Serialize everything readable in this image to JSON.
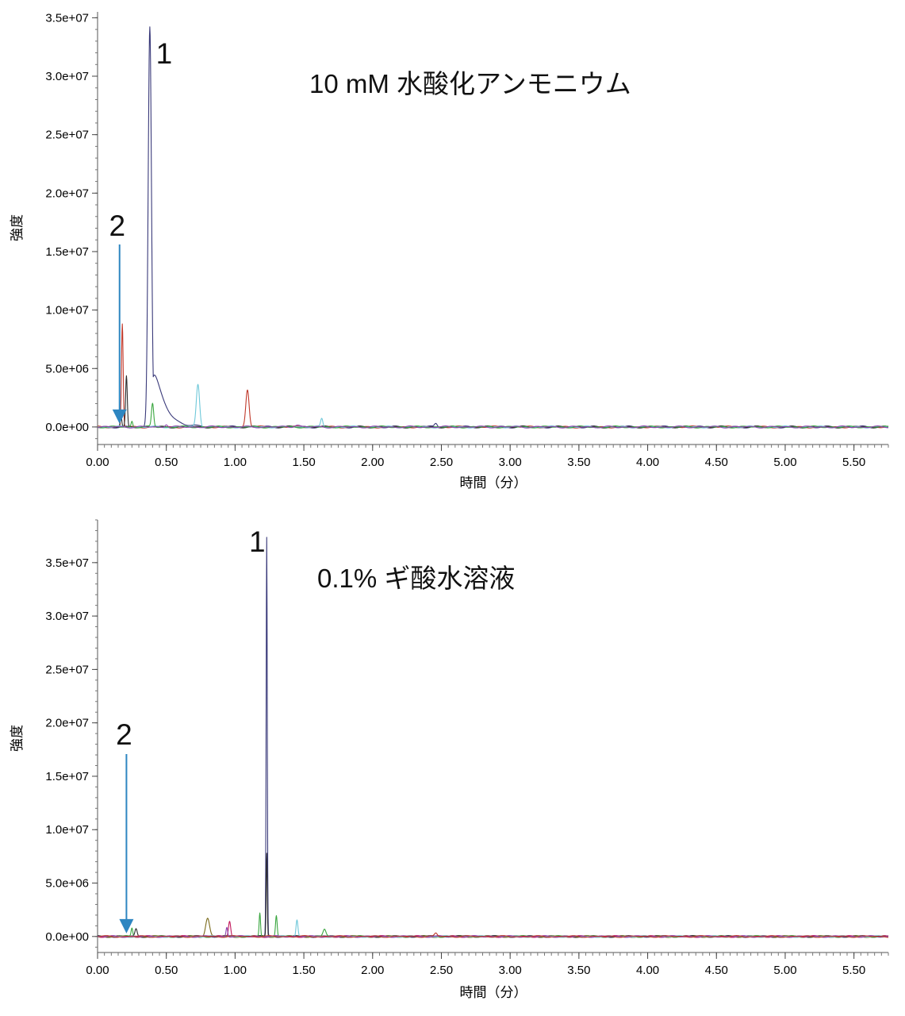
{
  "chart_data": [
    {
      "type": "line",
      "title": "10 mM 水酸化アンモニウム",
      "xlabel": "時間（分）",
      "ylabel": "強度",
      "xlim": [
        0,
        5.75
      ],
      "ylim": [
        -1500000,
        35500000
      ],
      "x_ticks": [
        0,
        0.5,
        1.0,
        1.5,
        2.0,
        2.5,
        3.0,
        3.5,
        4.0,
        4.5,
        5.0,
        5.5
      ],
      "x_tick_labels": [
        "0.00",
        "0.50",
        "1.00",
        "1.50",
        "2.00",
        "2.50",
        "3.00",
        "3.50",
        "4.00",
        "4.50",
        "5.00",
        "5.50"
      ],
      "y_ticks": [
        0,
        5000000,
        10000000,
        15000000,
        20000000,
        25000000,
        30000000,
        35000000
      ],
      "y_tick_labels": [
        "0.0e+00",
        "5.0e+06",
        "1.0e+07",
        "1.5e+07",
        "2.0e+07",
        "2.5e+07",
        "3.0e+07",
        "3.5e+07"
      ],
      "annotations": [
        {
          "label": "1",
          "x": 0.38,
          "y": 34300000
        },
        {
          "label": "2",
          "x": 0.16,
          "y": 0
        }
      ],
      "series": [
        {
          "color": "#3a3a7a",
          "peaks": [
            {
              "rt": 0.38,
              "height": 34300000,
              "width": 0.012,
              "tail": 0.07
            },
            {
              "rt": 2.46,
              "height": 300000,
              "width": 0.01
            }
          ]
        },
        {
          "color": "#c0392b",
          "peaks": [
            {
              "rt": 0.18,
              "height": 8800000,
              "width": 0.006
            },
            {
              "rt": 1.09,
              "height": 3200000,
              "width": 0.012
            }
          ]
        },
        {
          "color": "#2b2b2b",
          "peaks": [
            {
              "rt": 0.21,
              "height": 4300000,
              "width": 0.006
            },
            {
              "rt": 0.17,
              "height": 1200000,
              "width": 0.005
            }
          ]
        },
        {
          "color": "#6fc8d9",
          "peaks": [
            {
              "rt": 0.73,
              "height": 3700000,
              "width": 0.012
            },
            {
              "rt": 1.63,
              "height": 700000,
              "width": 0.008
            }
          ]
        },
        {
          "color": "#3aa640",
          "peaks": [
            {
              "rt": 0.4,
              "height": 2000000,
              "width": 0.008
            },
            {
              "rt": 0.25,
              "height": 500000,
              "width": 0.006
            }
          ]
        },
        {
          "color": "#8e44ad",
          "peaks": [
            {
              "rt": 0.5,
              "height": 250000,
              "width": 0.01
            },
            {
              "rt": 1.45,
              "height": 200000,
              "width": 0.02
            }
          ]
        }
      ]
    },
    {
      "type": "line",
      "title": "0.1% ギ酸水溶液",
      "xlabel": "時間（分）",
      "ylabel": "強度",
      "xlim": [
        0,
        5.75
      ],
      "ylim": [
        -1500000,
        39000000
      ],
      "x_ticks": [
        0,
        0.5,
        1.0,
        1.5,
        2.0,
        2.5,
        3.0,
        3.5,
        4.0,
        4.5,
        5.0,
        5.5
      ],
      "x_tick_labels": [
        "0.00",
        "0.50",
        "1.00",
        "1.50",
        "2.00",
        "2.50",
        "3.00",
        "3.50",
        "4.00",
        "4.50",
        "5.00",
        "5.50"
      ],
      "y_ticks": [
        0,
        5000000,
        10000000,
        15000000,
        20000000,
        25000000,
        30000000,
        35000000
      ],
      "y_tick_labels": [
        "0.0e+00",
        "5.0e+06",
        "1.0e+07",
        "1.5e+07",
        "2.0e+07",
        "2.5e+07",
        "3.0e+07",
        "3.5e+07"
      ],
      "annotations": [
        {
          "label": "1",
          "x": 1.23,
          "y": 37300000
        },
        {
          "label": "2",
          "x": 0.21,
          "y": 0
        }
      ],
      "series": [
        {
          "color": "#3a3a7a",
          "peaks": [
            {
              "rt": 1.23,
              "height": 37300000,
              "width": 0.004
            }
          ]
        },
        {
          "color": "#2b2b2b",
          "peaks": [
            {
              "rt": 1.23,
              "height": 7800000,
              "width": 0.004
            },
            {
              "rt": 0.28,
              "height": 700000,
              "width": 0.008
            }
          ]
        },
        {
          "color": "#3aa640",
          "peaks": [
            {
              "rt": 1.18,
              "height": 2200000,
              "width": 0.005
            },
            {
              "rt": 1.3,
              "height": 2000000,
              "width": 0.006
            },
            {
              "rt": 0.25,
              "height": 800000,
              "width": 0.006
            },
            {
              "rt": 1.65,
              "height": 600000,
              "width": 0.01
            }
          ]
        },
        {
          "color": "#7a6a1a",
          "peaks": [
            {
              "rt": 0.8,
              "height": 1700000,
              "width": 0.014
            }
          ]
        },
        {
          "color": "#c2185b",
          "peaks": [
            {
              "rt": 0.96,
              "height": 1500000,
              "width": 0.008
            }
          ]
        },
        {
          "color": "#6fc8d9",
          "peaks": [
            {
              "rt": 1.45,
              "height": 1600000,
              "width": 0.007
            }
          ]
        },
        {
          "color": "#8e44ad",
          "peaks": [
            {
              "rt": 0.94,
              "height": 900000,
              "width": 0.006
            }
          ]
        },
        {
          "color": "#c0392b",
          "peaks": [
            {
              "rt": 2.46,
              "height": 300000,
              "width": 0.01
            }
          ]
        }
      ]
    }
  ]
}
